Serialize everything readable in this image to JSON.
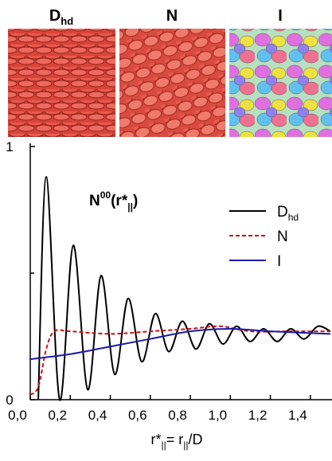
{
  "chart_data": {
    "type": "line",
    "panels": [
      [
        "D",
        "hd"
      ],
      [
        "N"
      ],
      [
        "I"
      ]
    ],
    "annotation_parts": [
      "N",
      "00",
      "(r*",
      "||",
      ")"
    ],
    "x_label_parts": [
      "r*",
      "||",
      "= r",
      "||",
      "/D"
    ],
    "xlim": [
      0,
      1.5
    ],
    "ylim": [
      0,
      1
    ],
    "xticks": [
      {
        "value": 0,
        "label": "0,0"
      },
      {
        "value": 0.2,
        "label": "0,2"
      },
      {
        "value": 0.4,
        "label": "0,4"
      },
      {
        "value": 0.6,
        "label": "0,6"
      },
      {
        "value": 0.8,
        "label": "0,8"
      },
      {
        "value": 1.0,
        "label": "1,0"
      },
      {
        "value": 1.2,
        "label": "1,2"
      },
      {
        "value": 1.4,
        "label": "1,4"
      }
    ],
    "yticks": [
      0,
      1
    ],
    "minor_yticks": [
      0.5
    ],
    "series": [
      {
        "name": "D",
        "name_sub": "hd",
        "color": "#000000",
        "dash": "solid",
        "x": [
          0.04,
          0.08,
          0.147,
          0.215,
          0.287,
          0.354,
          0.422,
          0.489,
          0.557,
          0.625,
          0.692,
          0.76,
          0.828,
          0.895,
          0.963,
          1.031,
          1.098,
          1.166,
          1.234,
          1.301,
          1.369,
          1.437,
          1.5
        ],
        "values": [
          0,
          0.88,
          0,
          0.61,
          0.04,
          0.49,
          0.1,
          0.4,
          0.15,
          0.34,
          0.19,
          0.31,
          0.2,
          0.3,
          0.22,
          0.29,
          0.23,
          0.28,
          0.23,
          0.28,
          0.24,
          0.29,
          0.27
        ]
      },
      {
        "name": "N",
        "color": "#cc1111",
        "dash": "dashed",
        "x": [
          0,
          0.04,
          0.08,
          0.12,
          0.2,
          0.4,
          0.6,
          0.8,
          0.95,
          1.1,
          1.3,
          1.5
        ],
        "values": [
          0.02,
          0.05,
          0.2,
          0.27,
          0.27,
          0.26,
          0.27,
          0.28,
          0.29,
          0.27,
          0.27,
          0.27
        ]
      },
      {
        "name": "I",
        "color": "#1a1aa8",
        "dash": "solid",
        "x": [
          0,
          0.2,
          0.4,
          0.6,
          0.8,
          1.0,
          1.2,
          1.5
        ],
        "values": [
          0.16,
          0.18,
          0.21,
          0.24,
          0.27,
          0.28,
          0.27,
          0.26
        ]
      }
    ]
  }
}
